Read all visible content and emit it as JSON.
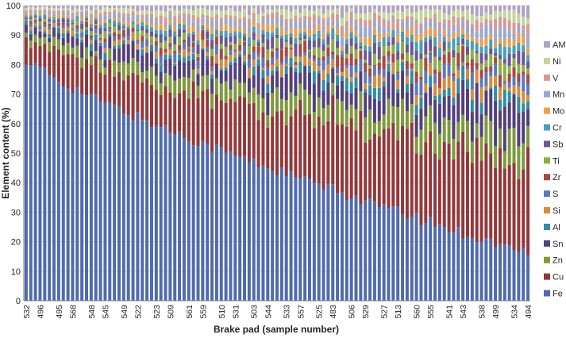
{
  "chart_data": {
    "type": "bar",
    "stacked": true,
    "title": "",
    "xlabel": "Brake pad (sample number)",
    "ylabel": "Element content (%)",
    "ylim": [
      0,
      100
    ],
    "yticks": [
      0,
      10,
      20,
      30,
      40,
      50,
      60,
      70,
      80,
      90,
      100
    ],
    "grid": true,
    "legend_position": "right",
    "bar_count": 109,
    "categories": [
      "532",
      "496",
      "495",
      "568",
      "548",
      "545",
      "549",
      "522",
      "523",
      "509",
      "561",
      "559",
      "510",
      "531",
      "503",
      "544",
      "533",
      "557",
      "525",
      "483",
      "506",
      "529",
      "527",
      "513",
      "560",
      "555",
      "541",
      "543",
      "538",
      "499",
      "534",
      "494"
    ],
    "series": [
      {
        "name": "Fe",
        "color": "#4F6BAD"
      },
      {
        "name": "Cu",
        "color": "#93383A"
      },
      {
        "name": "Zn",
        "color": "#7E9A3C"
      },
      {
        "name": "Sn",
        "color": "#523F7D"
      },
      {
        "name": "Al",
        "color": "#2F8DA8"
      },
      {
        "name": "Si",
        "color": "#D98B38"
      },
      {
        "name": "S",
        "color": "#5A79C2"
      },
      {
        "name": "Zr",
        "color": "#A84845"
      },
      {
        "name": "Ti",
        "color": "#8DAE45"
      },
      {
        "name": "Sb",
        "color": "#6C5596"
      },
      {
        "name": "Cr",
        "color": "#46A0BC"
      },
      {
        "name": "Mo",
        "color": "#EC9F4F"
      },
      {
        "name": "Mn",
        "color": "#96A8D4"
      },
      {
        "name": "V",
        "color": "#D49A98"
      },
      {
        "name": "Ni",
        "color": "#C2D69B"
      },
      {
        "name": "AM",
        "color": "#B1A0C7"
      }
    ]
  }
}
